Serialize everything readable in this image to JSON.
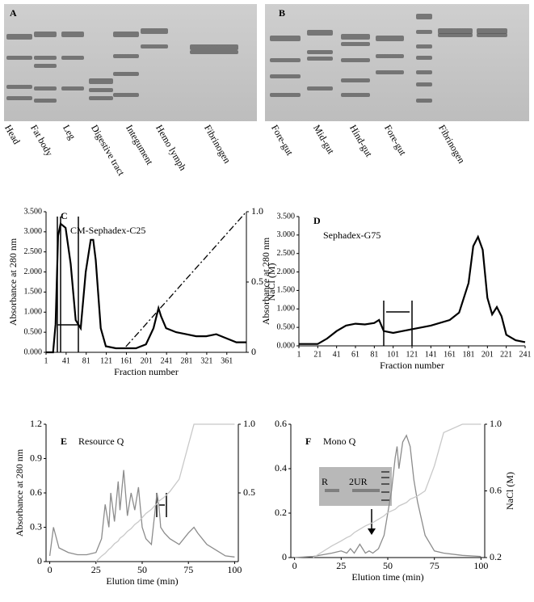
{
  "gels": [
    {
      "label": "A",
      "lanes": [
        "Head",
        "Fat body",
        "Leg",
        "Digestive tract",
        "Integument",
        "Hemo lymph",
        "Fibrinogen"
      ]
    },
    {
      "label": "B",
      "lanes": [
        "Fore-gut",
        "Mid-gut",
        "Hind-gut",
        "Fore-gut",
        "Fibrinogen"
      ]
    }
  ],
  "chart_data": [
    {
      "type": "line",
      "panel": "C",
      "title": "CM-Sephadex-C25",
      "xlabel": "Fraction number",
      "ylabel": "Absorbance at 280 nm",
      "y2label": "NaCl (M)",
      "x": [
        1,
        15,
        20,
        25,
        30,
        40,
        50,
        60,
        70,
        80,
        90,
        95,
        100,
        110,
        120,
        140,
        160,
        180,
        200,
        215,
        225,
        230,
        240,
        260,
        280,
        300,
        320,
        340,
        360,
        380,
        400
      ],
      "series": [
        {
          "color": "#000000",
          "linestyle": "solid",
          "values": [
            0,
            0,
            0.7,
            2.9,
            3.2,
            3.1,
            2.2,
            0.8,
            0.6,
            2.0,
            2.8,
            2.8,
            2.3,
            0.6,
            0.15,
            0.1,
            0.1,
            0.1,
            0.2,
            0.6,
            1.1,
            0.9,
            0.6,
            0.5,
            0.45,
            0.4,
            0.4,
            0.45,
            0.35,
            0.25,
            0.25
          ]
        },
        {
          "color": "#000000",
          "linestyle": "dashdot",
          "axis": "y2",
          "values": [
            null,
            null,
            null,
            null,
            null,
            null,
            null,
            null,
            null,
            null,
            null,
            null,
            null,
            null,
            null,
            null,
            0.04,
            0.12,
            0.2,
            0.26,
            0.3,
            0.32,
            0.36,
            0.44,
            0.52,
            0.6,
            0.68,
            0.76,
            0.84,
            0.92,
            1.0
          ]
        }
      ],
      "xlim": [
        1,
        400
      ],
      "xticks": [
        1,
        41,
        81,
        121,
        161,
        201,
        241,
        281,
        321,
        361
      ],
      "ylim": [
        0,
        3.5
      ],
      "yticks": [
        {
          "value": 0,
          "label": "0.000"
        },
        {
          "value": 0.5,
          "label": "0.500"
        },
        {
          "value": 1,
          "label": "1.000"
        },
        {
          "value": 1.5,
          "label": "1.500"
        },
        {
          "value": 2,
          "label": "2.000"
        },
        {
          "value": 2.5,
          "label": "2.500"
        },
        {
          "value": 3,
          "label": "3.000"
        },
        {
          "value": 3.5,
          "label": "3.500"
        }
      ],
      "y2lim": [
        0,
        1
      ],
      "y2ticks": [
        0,
        0.5,
        {
          "value": 1,
          "label": "1.0"
        }
      ]
    },
    {
      "type": "line",
      "panel": "D",
      "title": "Sephadex-G75",
      "xlabel": "Fraction number",
      "ylabel": "Absorbance at 280 nm",
      "x": [
        1,
        21,
        31,
        41,
        51,
        61,
        71,
        81,
        86,
        91,
        101,
        111,
        121,
        141,
        161,
        171,
        181,
        186,
        191,
        196,
        201,
        206,
        211,
        216,
        221,
        231,
        241
      ],
      "series": [
        {
          "color": "#000000",
          "linestyle": "solid",
          "values": [
            0.05,
            0.05,
            0.2,
            0.4,
            0.55,
            0.6,
            0.58,
            0.62,
            0.7,
            0.4,
            0.35,
            0.4,
            0.45,
            0.55,
            0.7,
            0.9,
            1.7,
            2.7,
            2.95,
            2.6,
            1.3,
            0.85,
            1.05,
            0.8,
            0.3,
            0.15,
            0.1
          ]
        }
      ],
      "xlim": [
        1,
        241
      ],
      "xticks": [
        1,
        21,
        41,
        61,
        81,
        101,
        121,
        141,
        161,
        181,
        201,
        221,
        241
      ],
      "ylim": [
        0,
        3.5
      ],
      "yticks": [
        {
          "value": 0,
          "label": "0.000"
        },
        {
          "value": 0.5,
          "label": "0.500"
        },
        {
          "value": 1,
          "label": "1.000"
        },
        {
          "value": 1.5,
          "label": "1.500"
        },
        {
          "value": 2,
          "label": "2.000"
        },
        {
          "value": 2.5,
          "label": "2.500"
        },
        {
          "value": 3,
          "label": "3.000"
        },
        {
          "value": 3.5,
          "label": "3.500"
        }
      ]
    },
    {
      "type": "line",
      "panel": "E",
      "title": "Resource Q",
      "xlabel": "Elution time (min)",
      "ylabel": "Absorbance at 280 nm",
      "x": [
        0,
        2,
        5,
        10,
        15,
        20,
        25,
        28,
        30,
        32,
        33,
        35,
        37,
        38,
        40,
        42,
        44,
        46,
        48,
        50,
        52,
        55,
        57,
        58,
        59,
        60,
        62,
        65,
        70,
        75,
        78,
        80,
        85,
        90,
        95,
        100
      ],
      "series": [
        {
          "color": "#8c8c8c",
          "linestyle": "solid",
          "values": [
            0.05,
            0.3,
            0.12,
            0.08,
            0.06,
            0.06,
            0.08,
            0.2,
            0.5,
            0.3,
            0.6,
            0.35,
            0.7,
            0.45,
            0.8,
            0.4,
            0.6,
            0.45,
            0.65,
            0.3,
            0.2,
            0.15,
            0.45,
            0.6,
            0.5,
            0.3,
            0.25,
            0.2,
            0.15,
            0.25,
            0.3,
            0.25,
            0.15,
            0.1,
            0.05,
            0.04
          ]
        },
        {
          "color": "#c8c8c8",
          "linestyle": "solid",
          "axis": "y2",
          "values": [
            null,
            null,
            null,
            null,
            null,
            null,
            0,
            0.04,
            0.06,
            0.09,
            0.1,
            0.13,
            0.15,
            0.17,
            0.19,
            0.22,
            0.24,
            0.27,
            0.29,
            0.32,
            0.35,
            0.38,
            0.41,
            0.42,
            0.44,
            0.45,
            0.47,
            0.51,
            0.6,
            0.85,
            1.0,
            1.0,
            1.0,
            1.0,
            1.0,
            1.0
          ]
        }
      ],
      "xlim": [
        -2,
        102
      ],
      "xticks": [
        0,
        25,
        50,
        75,
        100
      ],
      "ylim": [
        0,
        1.2
      ],
      "yticks": [
        0,
        0.3,
        0.6,
        0.9,
        1.2
      ],
      "y2lim": [
        0,
        1
      ],
      "y2ticks": [
        0.5,
        {
          "value": 1,
          "label": "1.0"
        }
      ]
    },
    {
      "type": "line",
      "panel": "F",
      "title": "Mono Q",
      "xlabel": "Elution time (min)",
      "y2label": "NaCl (M)",
      "inset_labels": [
        "R",
        "2UR"
      ],
      "x": [
        0,
        10,
        20,
        25,
        28,
        30,
        32,
        35,
        38,
        40,
        42,
        45,
        48,
        50,
        52,
        54,
        55,
        56,
        58,
        60,
        62,
        64,
        66,
        70,
        75,
        80,
        90,
        100
      ],
      "series": [
        {
          "color": "#8c8c8c",
          "linestyle": "solid",
          "values": [
            0,
            0.005,
            0.02,
            0.03,
            0.02,
            0.04,
            0.02,
            0.06,
            0.02,
            0.03,
            0.02,
            0.04,
            0.1,
            0.2,
            0.3,
            0.45,
            0.5,
            0.4,
            0.52,
            0.55,
            0.5,
            0.35,
            0.25,
            0.1,
            0.03,
            0.02,
            0.01,
            0.005
          ]
        },
        {
          "color": "#c8c8c8",
          "linestyle": "solid",
          "axis": "y2",
          "values": [
            null,
            0.2,
            0.27,
            0.3,
            0.32,
            0.33,
            0.35,
            0.37,
            0.39,
            0.4,
            0.41,
            0.43,
            0.45,
            0.47,
            0.48,
            0.49,
            0.5,
            0.51,
            0.52,
            0.53,
            0.55,
            0.56,
            0.57,
            0.6,
            0.75,
            0.95,
            1.0,
            1.0
          ]
        }
      ],
      "xlim": [
        -2,
        102
      ],
      "xticks": [
        0,
        25,
        50,
        75,
        100
      ],
      "ylim": [
        0,
        0.6
      ],
      "yticks": [
        0,
        0.2,
        0.4,
        0.6
      ],
      "y2lim": [
        0.2,
        1
      ],
      "y2ticks": [
        0.2,
        0.6,
        {
          "value": 1,
          "label": "1.0"
        }
      ]
    }
  ]
}
